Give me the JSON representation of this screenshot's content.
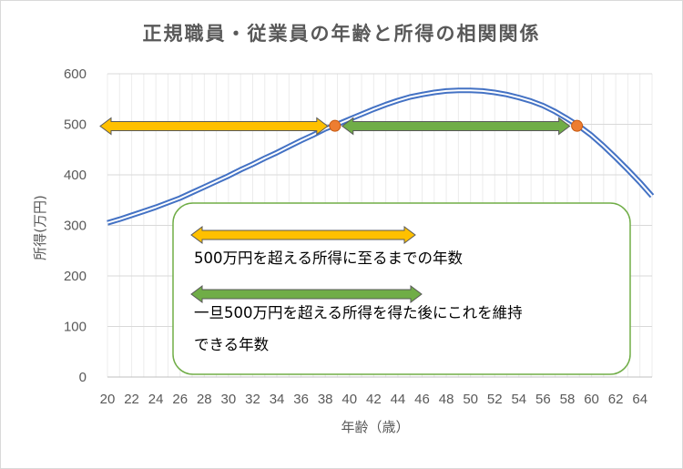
{
  "chart_data": {
    "type": "line",
    "title": "正規職員・従業員の年齢と所得の相関関係",
    "xlabel": "年齢（歳）",
    "ylabel": "所得(万円)",
    "xlim": [
      20,
      65
    ],
    "ylim": [
      0,
      600
    ],
    "x_ticks": [
      20,
      22,
      24,
      26,
      28,
      30,
      32,
      34,
      36,
      38,
      40,
      42,
      44,
      46,
      48,
      50,
      52,
      54,
      56,
      58,
      60,
      62,
      64
    ],
    "y_ticks": [
      0,
      100,
      200,
      300,
      400,
      500,
      600
    ],
    "grid": {
      "vertical": true,
      "horizontal": true
    },
    "series": [
      {
        "x": [
          20,
          21,
          22,
          23,
          24,
          25,
          26,
          27,
          28,
          29,
          30,
          31,
          32,
          33,
          34,
          35,
          36,
          37,
          38,
          39,
          40,
          41,
          42,
          43,
          44,
          45,
          46,
          47,
          48,
          49,
          50,
          51,
          52,
          53,
          54,
          55,
          56,
          57,
          58,
          59,
          60,
          61,
          62,
          63,
          64,
          65
        ],
        "values": [
          305,
          312,
          320,
          328,
          336,
          345,
          354,
          365,
          376,
          387,
          398,
          410,
          421,
          433,
          444,
          456,
          468,
          479,
          491,
          500,
          510,
          520,
          530,
          539,
          547,
          554,
          559,
          563,
          566,
          567,
          567,
          566,
          563,
          559,
          553,
          546,
          537,
          525,
          511,
          496,
          478,
          457,
          434,
          410,
          385,
          358
        ],
        "color": "#4472c4"
      }
    ],
    "markers": [
      {
        "x": 38.8,
        "y": 497,
        "color": "#ed7d31"
      },
      {
        "x": 58.8,
        "y": 497,
        "color": "#ed7d31"
      }
    ],
    "arrows": [
      {
        "x_from": 20,
        "x_to": 38.8,
        "y": 500,
        "color": "#ffc000"
      },
      {
        "x_from": 38.8,
        "x_to": 58.8,
        "y": 500,
        "color": "#70ad47"
      }
    ],
    "legend": {
      "placement": "center",
      "items": [
        {
          "text": "500万円を超える所得に至るまでの年数",
          "color": "#ffc000"
        },
        {
          "text": "一旦500万円を超える所得を得た後にこれを維持",
          "text2": "できる年数",
          "color": "#70ad47"
        }
      ]
    }
  }
}
